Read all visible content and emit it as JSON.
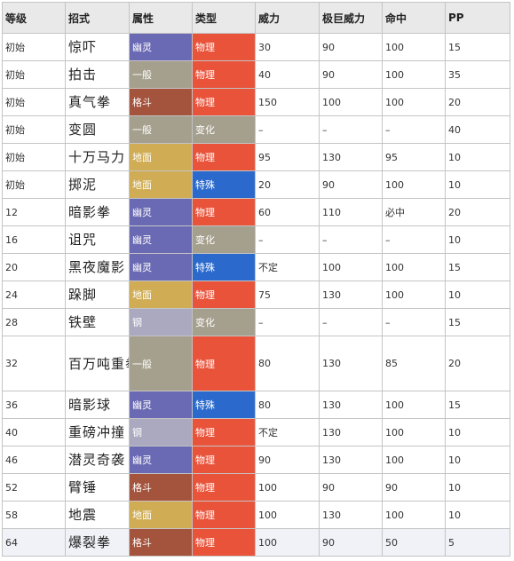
{
  "headers": [
    "等级",
    "招式",
    "属性",
    "类型",
    "威力",
    "极巨威力",
    "命中",
    "PP"
  ],
  "colors": {
    "幽灵": "#6a6ab4",
    "一般": "#a59f8e",
    "格斗": "#a4533c",
    "地面": "#d0ad55",
    "钢": "#aaa9c0",
    "物理": "#e9533a",
    "特殊": "#2b6acc",
    "变化": "#a59f8e"
  },
  "rows": [
    {
      "level": "初始",
      "name": "惊吓",
      "attr": "幽灵",
      "kind": "物理",
      "power": "30",
      "max_power": "90",
      "accuracy": "100",
      "pp": "15"
    },
    {
      "level": "初始",
      "name": "拍击",
      "attr": "一般",
      "kind": "物理",
      "power": "40",
      "max_power": "90",
      "accuracy": "100",
      "pp": "35"
    },
    {
      "level": "初始",
      "name": "真气拳",
      "attr": "格斗",
      "kind": "物理",
      "power": "150",
      "max_power": "100",
      "accuracy": "100",
      "pp": "20"
    },
    {
      "level": "初始",
      "name": "变圆",
      "attr": "一般",
      "kind": "变化",
      "power": "–",
      "max_power": "–",
      "accuracy": "–",
      "pp": "40"
    },
    {
      "level": "初始",
      "name": "十万马力",
      "attr": "地面",
      "kind": "物理",
      "power": "95",
      "max_power": "130",
      "accuracy": "95",
      "pp": "10"
    },
    {
      "level": "初始",
      "name": "掷泥",
      "attr": "地面",
      "kind": "特殊",
      "power": "20",
      "max_power": "90",
      "accuracy": "100",
      "pp": "10"
    },
    {
      "level": "12",
      "name": "暗影拳",
      "attr": "幽灵",
      "kind": "物理",
      "power": "60",
      "max_power": "110",
      "accuracy": "必中",
      "pp": "20"
    },
    {
      "level": "16",
      "name": "诅咒",
      "attr": "幽灵",
      "kind": "变化",
      "power": "–",
      "max_power": "–",
      "accuracy": "–",
      "pp": "10"
    },
    {
      "level": "20",
      "name": "黑夜魔影",
      "attr": "幽灵",
      "kind": "特殊",
      "power": "不定",
      "max_power": "100",
      "accuracy": "100",
      "pp": "15"
    },
    {
      "level": "24",
      "name": "跺脚",
      "attr": "地面",
      "kind": "物理",
      "power": "75",
      "max_power": "130",
      "accuracy": "100",
      "pp": "10"
    },
    {
      "level": "28",
      "name": "铁壁",
      "attr": "钢",
      "kind": "变化",
      "power": "–",
      "max_power": "–",
      "accuracy": "–",
      "pp": "15"
    },
    {
      "level": "32",
      "name": "百万吨重拳",
      "attr": "一般",
      "kind": "物理",
      "power": "80",
      "max_power": "130",
      "accuracy": "85",
      "pp": "20",
      "tall": true
    },
    {
      "level": "36",
      "name": "暗影球",
      "attr": "幽灵",
      "kind": "特殊",
      "power": "80",
      "max_power": "130",
      "accuracy": "100",
      "pp": "15"
    },
    {
      "level": "40",
      "name": "重磅冲撞",
      "attr": "钢",
      "kind": "物理",
      "power": "不定",
      "max_power": "130",
      "accuracy": "100",
      "pp": "10"
    },
    {
      "level": "46",
      "name": "潜灵奇袭",
      "attr": "幽灵",
      "kind": "物理",
      "power": "90",
      "max_power": "130",
      "accuracy": "100",
      "pp": "10"
    },
    {
      "level": "52",
      "name": "臂锤",
      "attr": "格斗",
      "kind": "物理",
      "power": "100",
      "max_power": "90",
      "accuracy": "90",
      "pp": "10"
    },
    {
      "level": "58",
      "name": "地震",
      "attr": "地面",
      "kind": "物理",
      "power": "100",
      "max_power": "130",
      "accuracy": "100",
      "pp": "10"
    },
    {
      "level": "64",
      "name": "爆裂拳",
      "attr": "格斗",
      "kind": "物理",
      "power": "100",
      "max_power": "90",
      "accuracy": "50",
      "pp": "5"
    }
  ]
}
